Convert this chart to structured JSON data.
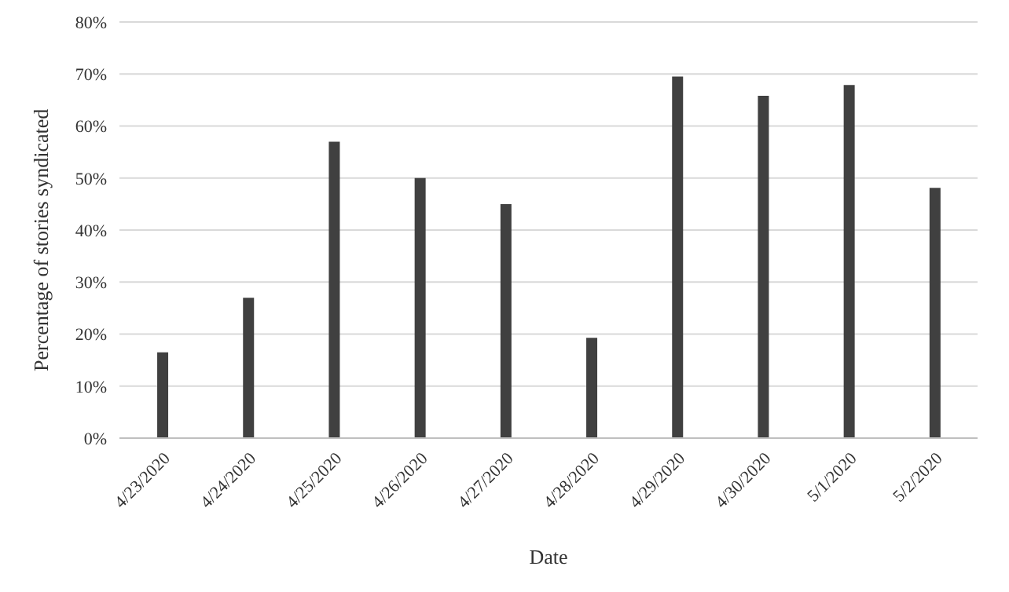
{
  "chart_data": {
    "type": "bar",
    "xlabel": "Date",
    "ylabel": "Percentage of stories syndicated",
    "categories": [
      "4/23/2020",
      "4/24/2020",
      "4/25/2020",
      "4/26/2020",
      "4/27/2020",
      "4/28/2020",
      "4/29/2020",
      "4/30/2020",
      "5/1/2020",
      "5/2/2020"
    ],
    "values": [
      16.5,
      27,
      57,
      50,
      45,
      19.3,
      69.5,
      65.8,
      67.9,
      48.1
    ],
    "color": "#404040",
    "ylim": [
      0,
      80
    ],
    "yticks": [
      {
        "value": 0,
        "label": "0%"
      },
      {
        "value": 10,
        "label": "10%"
      },
      {
        "value": 20,
        "label": "20%"
      },
      {
        "value": 30,
        "label": "30%"
      },
      {
        "value": 40,
        "label": "40%"
      },
      {
        "value": 50,
        "label": "50%"
      },
      {
        "value": 60,
        "label": "60%"
      },
      {
        "value": 70,
        "label": "70%"
      },
      {
        "value": 80,
        "label": "80%"
      }
    ],
    "grid": "y"
  }
}
